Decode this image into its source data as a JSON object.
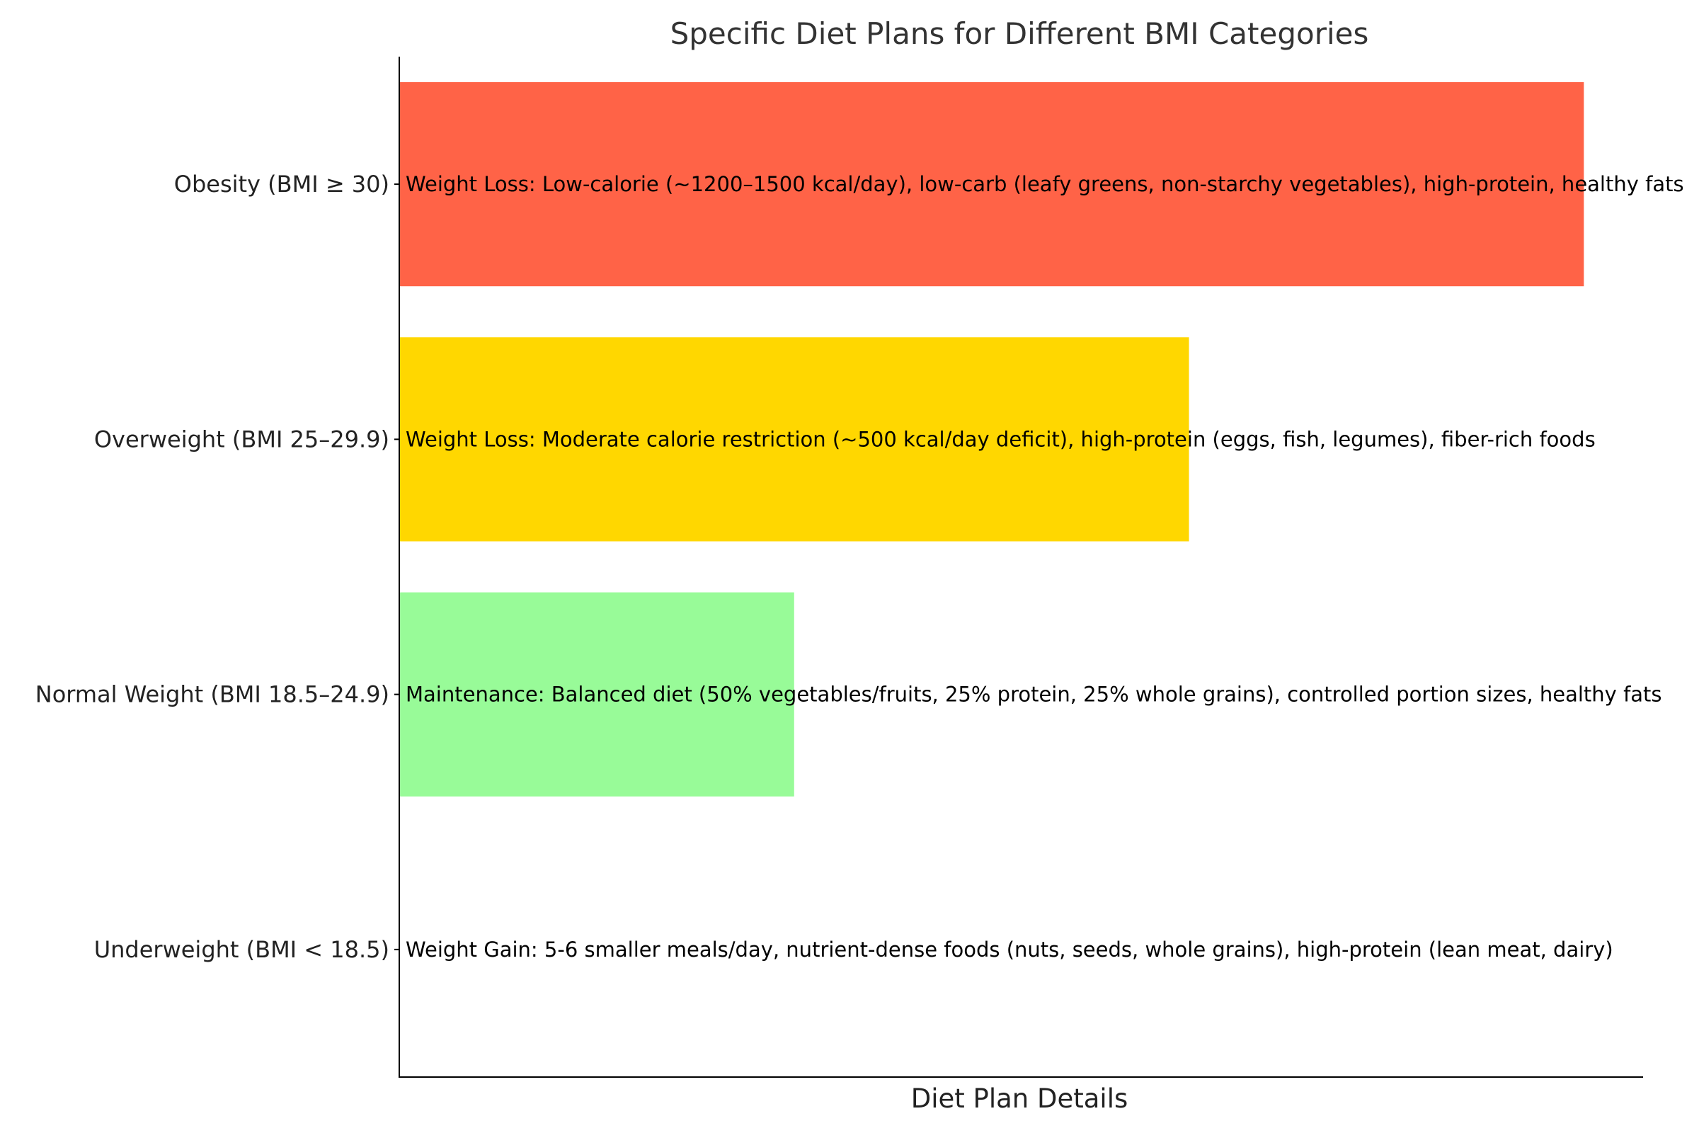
{
  "chart_data": {
    "type": "bar",
    "orientation": "horizontal",
    "title": "Specific Diet Plans for Different BMI Categories",
    "xlabel": "Diet Plan Details",
    "ylabel": "",
    "categories": [
      "Underweight (BMI < 18.5)",
      "Normal Weight (BMI 18.5–24.9)",
      "Overweight (BMI 25–29.9)",
      "Obesity (BMI ≥ 30)"
    ],
    "values": [
      0,
      1,
      2,
      3
    ],
    "xlim": [
      0,
      3.15
    ],
    "colors": [
      "#ffffff",
      "#98fb98",
      "#ffd700",
      "#ff6347"
    ],
    "annotations": [
      "Weight Gain: 5-6 smaller meals/day, nutrient-dense foods (nuts, seeds, whole grains), high-protein (lean meat, dairy)",
      "Maintenance: Balanced diet (50% vegetables/fruits, 25% protein, 25% whole grains), controlled portion sizes, healthy fats",
      "Weight Loss: Moderate calorie restriction (~500 kcal/day deficit), high-protein (eggs, fish, legumes), fiber-rich foods",
      "Weight Loss: Low-calorie (~1200–1500 kcal/day), low-carb (leafy greens, non-starchy vegetables), high-protein, healthy fats"
    ],
    "grid": false,
    "legend": "none"
  }
}
